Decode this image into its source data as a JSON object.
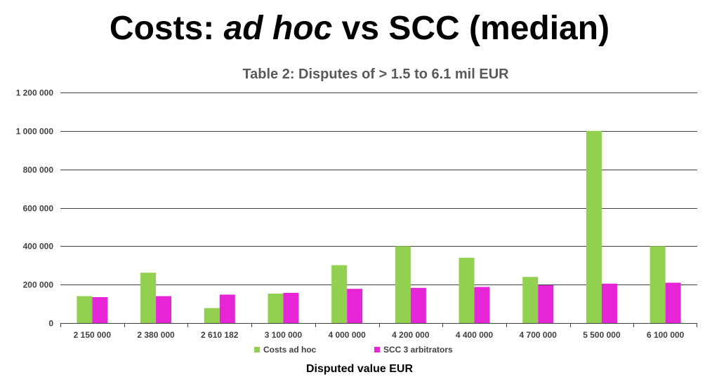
{
  "slide": {
    "title_pre": "Costs: ",
    "title_em": "ad hoc",
    "title_post": " vs SCC (median)"
  },
  "colors": {
    "series_1": "#92d050",
    "series_2": "#e626d6",
    "grid": "#404040",
    "text": "#404040"
  },
  "chart_data": {
    "type": "bar",
    "title": "Table 2: Disputes of > 1.5 to 6.1 mil EUR",
    "xlabel": "Disputed value EUR",
    "ylabel": "",
    "ylim": [
      0,
      1200000
    ],
    "yticks": [
      0,
      200000,
      400000,
      600000,
      800000,
      1000000,
      1200000
    ],
    "ytick_labels": [
      "0",
      "200 000",
      "400 000",
      "600 000",
      "800 000",
      "1 000 000",
      "1 200 000"
    ],
    "grid": true,
    "legend": "bottom",
    "categories": [
      "2 150 000",
      "2 380 000",
      "2 610 182",
      "3 100 000",
      "4 000 000",
      "4 200 000",
      "4 400 000",
      "4 700 000",
      "5 500 000",
      "6 100 000"
    ],
    "series": [
      {
        "name": "Costs ad hoc",
        "values": [
          140000,
          262000,
          78000,
          153000,
          301000,
          400000,
          340000,
          240000,
          1000000,
          400000
        ]
      },
      {
        "name": "SCC 3 arbitrators",
        "values": [
          135000,
          140000,
          148000,
          157000,
          178000,
          183000,
          188000,
          197000,
          205000,
          210000
        ]
      }
    ]
  }
}
